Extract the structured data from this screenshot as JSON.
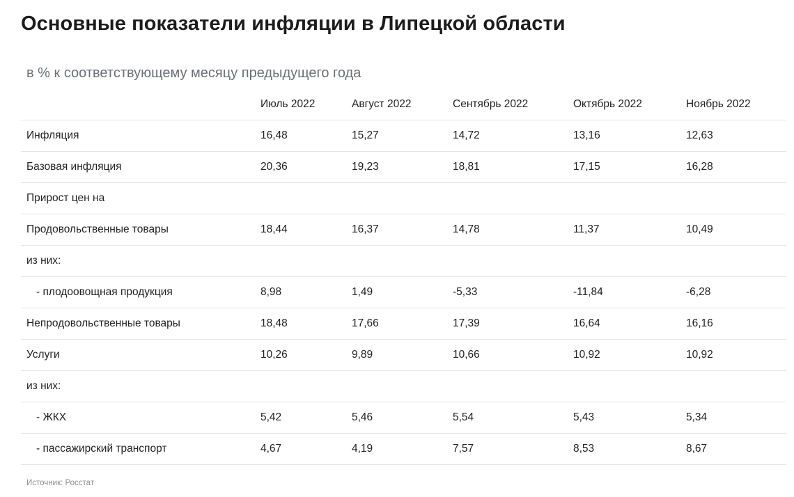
{
  "title": "Основные показатели инфляции в Липецкой области",
  "subtitle": "в % к соответствующему месяцу предыдущего года",
  "table": {
    "headers": [
      "",
      "Июль 2022",
      "Август 2022",
      "Сентябрь 2022",
      "Октябрь 2022",
      "Ноябрь 2022"
    ],
    "rows": [
      {
        "label": "Инфляция",
        "indent": false,
        "values": [
          "16,48",
          "15,27",
          "14,72",
          "13,16",
          "12,63"
        ]
      },
      {
        "label": "Базовая инфляция",
        "indent": false,
        "values": [
          "20,36",
          "19,23",
          "18,81",
          "17,15",
          "16,28"
        ]
      },
      {
        "label": "Прирост цен на",
        "indent": false,
        "values": [
          "",
          "",
          "",
          "",
          ""
        ]
      },
      {
        "label": "Продовольственные товары",
        "indent": false,
        "values": [
          "18,44",
          "16,37",
          "14,78",
          "11,37",
          "10,49"
        ]
      },
      {
        "label": "из них:",
        "indent": false,
        "values": [
          "",
          "",
          "",
          "",
          ""
        ]
      },
      {
        "label": "- плодоовощная продукция",
        "indent": true,
        "values": [
          "8,98",
          "1,49",
          "-5,33",
          "-11,84",
          "-6,28"
        ]
      },
      {
        "label": "Непродовольственные товары",
        "indent": false,
        "values": [
          "18,48",
          "17,66",
          "17,39",
          "16,64",
          "16,16"
        ]
      },
      {
        "label": "Услуги",
        "indent": false,
        "values": [
          "10,26",
          "9,89",
          "10,66",
          "10,92",
          "10,92"
        ]
      },
      {
        "label": "из них:",
        "indent": false,
        "values": [
          "",
          "",
          "",
          "",
          ""
        ]
      },
      {
        "label": "- ЖКХ",
        "indent": true,
        "values": [
          "5,42",
          "5,46",
          "5,54",
          "5,43",
          "5,34"
        ]
      },
      {
        "label": "- пассажирский транспорт",
        "indent": true,
        "values": [
          "4,67",
          "4,19",
          "7,57",
          "8,53",
          "8,67"
        ]
      }
    ]
  },
  "source": "Источник: Росстат"
}
